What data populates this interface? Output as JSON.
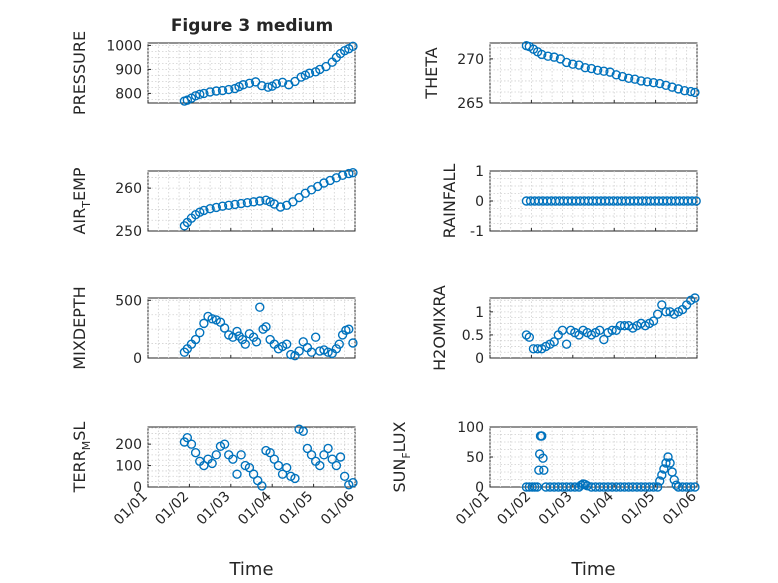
{
  "figure": {
    "title": "Figure 3 medium",
    "accent": "#0072BD",
    "grid_color": "#d0d0d0",
    "axis_color": "#262626"
  },
  "chart_data": [
    {
      "type": "scatter",
      "id": "pressure",
      "ylabel": "PRESSURE",
      "xlabel": "",
      "ylim": [
        760,
        1010
      ],
      "yticks": [
        800,
        900,
        1000
      ],
      "ytick_labels": [
        "800",
        "900",
        "1000"
      ],
      "xlim": [
        1,
        6
      ],
      "xticks": [
        1,
        2,
        3,
        4,
        5,
        6
      ],
      "xtick_labels": [],
      "title": "Figure 3 medium",
      "x": [
        1.88,
        1.95,
        2.05,
        2.15,
        2.25,
        2.35,
        2.5,
        2.65,
        2.8,
        2.95,
        3.1,
        3.2,
        3.3,
        3.45,
        3.6,
        3.75,
        3.9,
        4.0,
        4.1,
        4.25,
        4.4,
        4.55,
        4.7,
        4.8,
        4.9,
        5.05,
        5.15,
        5.3,
        5.45,
        5.55,
        5.65,
        5.75,
        5.85,
        5.95
      ],
      "y": [
        768,
        772,
        780,
        790,
        796,
        800,
        806,
        810,
        812,
        816,
        820,
        828,
        836,
        842,
        848,
        832,
        826,
        830,
        840,
        846,
        836,
        850,
        868,
        876,
        884,
        890,
        900,
        912,
        930,
        950,
        966,
        978,
        986,
        996
      ]
    },
    {
      "type": "scatter",
      "id": "theta",
      "ylabel": "THETA",
      "xlabel": "",
      "ylim": [
        265,
        271.8
      ],
      "yticks": [
        265,
        270
      ],
      "ytick_labels": [
        "265",
        "270"
      ],
      "xlim": [
        1,
        6
      ],
      "xticks": [
        1,
        2,
        3,
        4,
        5,
        6
      ],
      "xtick_labels": [],
      "x": [
        1.88,
        1.95,
        2.05,
        2.15,
        2.25,
        2.4,
        2.55,
        2.7,
        2.85,
        3.0,
        3.15,
        3.3,
        3.45,
        3.6,
        3.75,
        3.9,
        4.05,
        4.2,
        4.35,
        4.5,
        4.65,
        4.8,
        4.95,
        5.1,
        5.25,
        5.4,
        5.55,
        5.7,
        5.85,
        5.95
      ],
      "y": [
        271.5,
        271.4,
        271.1,
        270.8,
        270.5,
        270.3,
        270.2,
        270.0,
        269.6,
        269.4,
        269.3,
        269.0,
        268.9,
        268.7,
        268.6,
        268.5,
        268.2,
        268.0,
        267.8,
        267.7,
        267.5,
        267.4,
        267.3,
        267.2,
        267.0,
        266.8,
        266.6,
        266.4,
        266.3,
        266.2
      ]
    },
    {
      "type": "scatter",
      "id": "air_temp",
      "ylabel": "AIR",
      "ylabel_sub": "T",
      "ylabel_rest": "EMP",
      "xlabel": "",
      "ylim": [
        250,
        264
      ],
      "yticks": [
        250,
        260
      ],
      "ytick_labels": [
        "250",
        "260"
      ],
      "xlim": [
        1,
        6
      ],
      "xticks": [
        1,
        2,
        3,
        4,
        5,
        6
      ],
      "xtick_labels": [],
      "x": [
        1.88,
        1.95,
        2.05,
        2.15,
        2.25,
        2.35,
        2.5,
        2.65,
        2.8,
        2.95,
        3.1,
        3.25,
        3.4,
        3.55,
        3.7,
        3.85,
        3.95,
        4.05,
        4.2,
        4.35,
        4.5,
        4.65,
        4.8,
        4.95,
        5.1,
        5.25,
        5.4,
        5.55,
        5.7,
        5.85,
        5.95
      ],
      "y": [
        251.2,
        252,
        253,
        253.8,
        254.4,
        254.8,
        255.2,
        255.5,
        255.8,
        256,
        256.2,
        256.4,
        256.6,
        256.8,
        257,
        257.2,
        256.8,
        256.3,
        255.6,
        256,
        256.8,
        257.8,
        258.8,
        259.6,
        260.4,
        261.2,
        261.8,
        262.4,
        263,
        263.4,
        263.6
      ]
    },
    {
      "type": "scatter",
      "id": "rainfall",
      "ylabel": "RAINFALL",
      "xlabel": "",
      "ylim": [
        -1,
        1
      ],
      "yticks": [
        -1,
        0,
        1
      ],
      "ytick_labels": [
        "-1",
        "0",
        "1"
      ],
      "xlim": [
        1,
        6
      ],
      "xticks": [
        1,
        2,
        3,
        4,
        5,
        6
      ],
      "xtick_labels": [],
      "x": [
        1.88,
        1.98,
        2.08,
        2.18,
        2.28,
        2.38,
        2.48,
        2.58,
        2.68,
        2.78,
        2.88,
        2.98,
        3.08,
        3.18,
        3.28,
        3.38,
        3.48,
        3.58,
        3.68,
        3.78,
        3.88,
        3.98,
        4.08,
        4.18,
        4.28,
        4.38,
        4.48,
        4.58,
        4.68,
        4.78,
        4.88,
        4.98,
        5.08,
        5.18,
        5.28,
        5.38,
        5.48,
        5.58,
        5.68,
        5.78,
        5.88,
        5.98
      ],
      "y": [
        0,
        0,
        0,
        0,
        0,
        0,
        0,
        0,
        0,
        0,
        0,
        0,
        0,
        0,
        0,
        0,
        0,
        0,
        0,
        0,
        0,
        0,
        0,
        0,
        0,
        0,
        0,
        0,
        0,
        0,
        0,
        0,
        0,
        0,
        0,
        0,
        0,
        0,
        0,
        0,
        0,
        0
      ]
    },
    {
      "type": "scatter",
      "id": "mixdepth",
      "ylabel": "MIXDEPTH",
      "xlabel": "",
      "ylim": [
        0,
        520
      ],
      "yticks": [
        0,
        500
      ],
      "ytick_labels": [
        "0",
        "500"
      ],
      "xlim": [
        1,
        6
      ],
      "xticks": [
        1,
        2,
        3,
        4,
        5,
        6
      ],
      "xtick_labels": [],
      "x": [
        1.88,
        1.95,
        2.05,
        2.15,
        2.25,
        2.35,
        2.45,
        2.55,
        2.65,
        2.75,
        2.85,
        2.95,
        3.05,
        3.15,
        3.2,
        3.28,
        3.35,
        3.45,
        3.55,
        3.62,
        3.7,
        3.78,
        3.85,
        3.95,
        4.05,
        4.15,
        4.25,
        4.35,
        4.45,
        4.55,
        4.65,
        4.75,
        4.85,
        4.95,
        5.05,
        5.15,
        5.25,
        5.35,
        5.45,
        5.55,
        5.62,
        5.7,
        5.78,
        5.85,
        5.95
      ],
      "y": [
        50,
        80,
        120,
        160,
        220,
        300,
        360,
        340,
        330,
        310,
        260,
        200,
        180,
        230,
        190,
        160,
        120,
        210,
        180,
        140,
        440,
        250,
        270,
        160,
        120,
        80,
        100,
        120,
        30,
        20,
        60,
        140,
        90,
        50,
        180,
        60,
        70,
        50,
        40,
        80,
        120,
        200,
        240,
        250,
        130
      ]
    },
    {
      "type": "scatter",
      "id": "h2omixra",
      "ylabel": "H2OMIXRA",
      "xlabel": "",
      "ylim": [
        0,
        1.3
      ],
      "yticks": [
        0,
        0.5,
        1
      ],
      "ytick_labels": [
        "0",
        "0.5",
        "1"
      ],
      "xlim": [
        1,
        6
      ],
      "xticks": [
        1,
        2,
        3,
        4,
        5,
        6
      ],
      "xtick_labels": [],
      "x": [
        1.88,
        1.95,
        2.05,
        2.15,
        2.25,
        2.35,
        2.45,
        2.55,
        2.65,
        2.75,
        2.85,
        2.95,
        3.05,
        3.15,
        3.25,
        3.35,
        3.45,
        3.55,
        3.65,
        3.75,
        3.85,
        3.95,
        4.05,
        4.15,
        4.25,
        4.35,
        4.45,
        4.55,
        4.65,
        4.75,
        4.85,
        4.95,
        5.05,
        5.15,
        5.25,
        5.35,
        5.45,
        5.55,
        5.65,
        5.75,
        5.85,
        5.95
      ],
      "y": [
        0.5,
        0.45,
        0.2,
        0.2,
        0.2,
        0.25,
        0.3,
        0.35,
        0.5,
        0.6,
        0.3,
        0.6,
        0.55,
        0.5,
        0.6,
        0.55,
        0.5,
        0.55,
        0.6,
        0.4,
        0.55,
        0.6,
        0.6,
        0.7,
        0.7,
        0.7,
        0.65,
        0.7,
        0.75,
        0.7,
        0.75,
        0.8,
        0.95,
        1.15,
        1.0,
        1.0,
        0.95,
        1.0,
        1.05,
        1.15,
        1.25,
        1.3
      ]
    },
    {
      "type": "scatter",
      "id": "terr_msl",
      "ylabel": "TERR",
      "ylabel_sub": "M",
      "ylabel_rest": "SL",
      "xlabel": "Time",
      "ylim": [
        0,
        280
      ],
      "yticks": [
        0,
        100,
        200
      ],
      "ytick_labels": [
        "0",
        "100",
        "200"
      ],
      "xlim": [
        1,
        6
      ],
      "xticks": [
        1,
        2,
        3,
        4,
        5,
        6
      ],
      "xtick_labels": [
        "01/01",
        "01/02",
        "01/03",
        "01/04",
        "01/05",
        "01/06"
      ],
      "x": [
        1.88,
        1.95,
        2.05,
        2.15,
        2.25,
        2.35,
        2.45,
        2.55,
        2.65,
        2.75,
        2.85,
        2.95,
        3.05,
        3.15,
        3.25,
        3.35,
        3.45,
        3.55,
        3.65,
        3.75,
        3.85,
        3.95,
        4.05,
        4.15,
        4.25,
        4.35,
        4.45,
        4.55,
        4.65,
        4.75,
        4.85,
        4.95,
        5.05,
        5.15,
        5.25,
        5.35,
        5.45,
        5.55,
        5.65,
        5.75,
        5.85,
        5.95
      ],
      "y": [
        210,
        230,
        200,
        160,
        120,
        100,
        130,
        110,
        150,
        190,
        200,
        150,
        130,
        60,
        150,
        100,
        90,
        60,
        30,
        5,
        170,
        160,
        130,
        100,
        60,
        90,
        50,
        40,
        270,
        260,
        180,
        150,
        120,
        100,
        150,
        180,
        130,
        100,
        140,
        50,
        10,
        20
      ]
    },
    {
      "type": "scatter",
      "id": "sun_flux",
      "ylabel": "SUN",
      "ylabel_sub": "F",
      "ylabel_rest": "LUX",
      "xlabel": "Time",
      "ylim": [
        0,
        100
      ],
      "yticks": [
        0,
        50,
        100
      ],
      "ytick_labels": [
        "0",
        "50",
        "100"
      ],
      "xlim": [
        1,
        6
      ],
      "xticks": [
        1,
        2,
        3,
        4,
        5,
        6
      ],
      "xtick_labels": [
        "01/01",
        "01/02",
        "01/03",
        "01/04",
        "01/05",
        "01/06"
      ],
      "x": [
        1.88,
        1.95,
        2.02,
        2.08,
        2.14,
        2.18,
        2.2,
        2.22,
        2.25,
        2.28,
        2.3,
        2.35,
        2.45,
        2.55,
        2.65,
        2.75,
        2.85,
        2.95,
        3.05,
        3.15,
        3.2,
        3.25,
        3.3,
        3.35,
        3.45,
        3.55,
        3.65,
        3.75,
        3.85,
        3.95,
        4.05,
        4.15,
        4.25,
        4.35,
        4.45,
        4.55,
        4.65,
        4.75,
        4.85,
        4.95,
        5.05,
        5.1,
        5.15,
        5.2,
        5.25,
        5.3,
        5.35,
        5.4,
        5.45,
        5.5,
        5.55,
        5.65,
        5.75,
        5.85,
        5.95
      ],
      "y": [
        0,
        0,
        0,
        0,
        0,
        28,
        55,
        85,
        85,
        48,
        28,
        0,
        0,
        0,
        0,
        0,
        0,
        0,
        0,
        0,
        3,
        5,
        4,
        2,
        0,
        0,
        0,
        0,
        0,
        0,
        0,
        0,
        0,
        0,
        0,
        0,
        0,
        0,
        0,
        0,
        0,
        10,
        20,
        30,
        40,
        50,
        40,
        25,
        12,
        3,
        0,
        0,
        0,
        0,
        0
      ]
    }
  ]
}
